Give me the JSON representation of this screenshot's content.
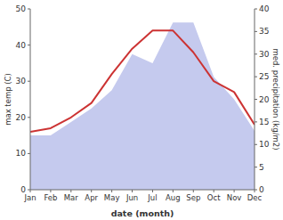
{
  "chart_data": {
    "type": "line",
    "categories": [
      "Jan",
      "Feb",
      "Mar",
      "Apr",
      "May",
      "Jun",
      "Jul",
      "Aug",
      "Sep",
      "Oct",
      "Nov",
      "Dec"
    ],
    "series": [
      {
        "type": "area",
        "axis": "y2",
        "color": "#c5caee",
        "values": [
          12,
          12,
          15,
          18,
          22,
          30,
          28,
          37,
          37,
          25,
          20,
          13
        ]
      },
      {
        "type": "line",
        "color": "#cc3333",
        "values": [
          16,
          17,
          20,
          24,
          32,
          39,
          44,
          44,
          38,
          30,
          27,
          18
        ]
      }
    ],
    "xlabel": "date (month)",
    "ylabel": "max temp (C)",
    "y2label": "med. precipitation (kg/m2)",
    "ylim": [
      0,
      50
    ],
    "yticks": [
      0,
      10,
      20,
      30,
      40,
      50
    ],
    "y2lim": [
      0,
      40
    ],
    "y2ticks": [
      0,
      5,
      10,
      15,
      20,
      25,
      30,
      35,
      40
    ],
    "grid": false
  }
}
